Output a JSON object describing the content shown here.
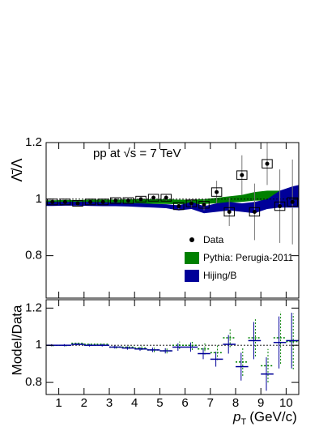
{
  "chart_data": [
    {
      "type": "errorbar",
      "annotation": "pp at √s = 7 TeV",
      "annotation_color": "#8b0000",
      "ylabel": "Λ̄/Λ",
      "xlim": [
        0.5,
        10.5
      ],
      "ylim": [
        0.65,
        1.2
      ],
      "xticks": [
        1,
        2,
        3,
        4,
        5,
        6,
        7,
        8,
        9,
        10
      ],
      "yticks": [
        0.8,
        1,
        1.2
      ],
      "reference_line": 1,
      "x": [
        0.75,
        1.25,
        1.75,
        2.25,
        2.75,
        3.25,
        3.75,
        4.25,
        4.75,
        5.25,
        5.75,
        6.25,
        6.75,
        7.25,
        7.75,
        8.25,
        8.75,
        9.25,
        9.75,
        10.25
      ],
      "series": [
        {
          "name": "Data",
          "color": "#000000",
          "values": [
            0.99,
            0.99,
            0.985,
            0.99,
            0.99,
            0.995,
            0.995,
            1.0,
            1.005,
            1.005,
            0.975,
            0.985,
            0.98,
            1.025,
            0.955,
            1.085,
            0.955,
            1.125,
            0.975,
            0.99
          ],
          "errors": [
            0.004,
            0.004,
            0.004,
            0.005,
            0.005,
            0.005,
            0.006,
            0.007,
            0.008,
            0.01,
            0.012,
            0.015,
            0.02,
            0.04,
            0.05,
            0.07,
            0.1,
            0.075,
            0.13,
            0.15
          ],
          "syst": [
            0.01,
            0.01,
            0.01,
            0.01,
            0.01,
            0.01,
            0.01,
            0.01,
            0.012,
            0.012,
            0.012,
            0.012,
            0.012,
            0.015,
            0.015,
            0.015,
            0.015,
            0.015,
            0.015,
            0.015
          ]
        }
      ],
      "bands": [
        {
          "name": "Pythia: Perugia-2011",
          "color": "#008000",
          "x": [
            0.5,
            0.75,
            1.25,
            1.75,
            2.25,
            2.75,
            3.25,
            3.75,
            4.25,
            4.75,
            5.25,
            5.75,
            6.25,
            6.75,
            7.25,
            7.75,
            8.25,
            8.75,
            9.25,
            9.75,
            10.25,
            10.5
          ],
          "lower": [
            0.978,
            0.978,
            0.979,
            0.979,
            0.98,
            0.98,
            0.981,
            0.982,
            0.983,
            0.983,
            0.983,
            0.982,
            0.982,
            0.983,
            0.985,
            0.988,
            0.99,
            0.995,
            0.995,
            0.99,
            0.985,
            0.985
          ],
          "upper": [
            0.996,
            0.996,
            0.997,
            0.997,
            0.998,
            0.998,
            0.998,
            0.999,
            1.0,
            1.0,
            1.0,
            0.998,
            0.998,
            1.0,
            1.005,
            1.01,
            1.015,
            1.025,
            1.03,
            1.03,
            1.025,
            1.025
          ]
        },
        {
          "name": "Hijing/B",
          "color": "#000099",
          "x": [
            0.5,
            0.75,
            1.25,
            1.75,
            2.25,
            2.75,
            3.25,
            3.75,
            4.25,
            4.75,
            5.25,
            5.75,
            6.25,
            6.75,
            7.25,
            7.75,
            8.25,
            8.75,
            9.25,
            9.75,
            10.25,
            10.5
          ],
          "lower": [
            0.976,
            0.976,
            0.977,
            0.977,
            0.976,
            0.975,
            0.975,
            0.974,
            0.972,
            0.97,
            0.968,
            0.96,
            0.965,
            0.95,
            0.955,
            0.96,
            0.955,
            0.95,
            0.965,
            0.97,
            0.97,
            0.97
          ],
          "upper": [
            0.99,
            0.99,
            0.99,
            0.991,
            0.99,
            0.989,
            0.988,
            0.987,
            0.985,
            0.983,
            0.982,
            0.978,
            0.99,
            0.975,
            0.985,
            0.99,
            0.985,
            0.99,
            1.0,
            1.03,
            1.045,
            1.05
          ]
        }
      ]
    },
    {
      "type": "errorbar",
      "ylabel": "Model/Data",
      "xlabel": {
        "symbol": "p",
        "subscript": "T",
        "unit": "(GeV/c)"
      },
      "xlim": [
        0.5,
        10.5
      ],
      "ylim": [
        0.735,
        1.245
      ],
      "xticks": [
        1,
        2,
        3,
        4,
        5,
        6,
        7,
        8,
        9,
        10
      ],
      "yticks": [
        0.8,
        1,
        1.2
      ],
      "reference_line": 1,
      "x": [
        0.75,
        1.25,
        1.75,
        2.25,
        2.75,
        3.25,
        3.75,
        4.25,
        4.75,
        5.25,
        5.75,
        6.25,
        6.75,
        7.25,
        7.75,
        8.25,
        8.75,
        9.25,
        9.75,
        10.25
      ],
      "series": [
        {
          "name": "Pythia: Perugia-2011",
          "color": "#008000",
          "values": [
            1.0,
            1.0,
            1.01,
            1.005,
            1.005,
            0.99,
            0.99,
            0.985,
            0.975,
            0.97,
            1.0,
            1.0,
            0.98,
            0.96,
            1.04,
            0.91,
            1.04,
            0.89,
            1.04,
            1.02
          ],
          "errors": [
            0.006,
            0.006,
            0.006,
            0.007,
            0.007,
            0.008,
            0.009,
            0.01,
            0.012,
            0.014,
            0.02,
            0.025,
            0.03,
            0.04,
            0.05,
            0.075,
            0.1,
            0.09,
            0.14,
            0.15
          ]
        },
        {
          "name": "Hijing/B",
          "color": "#000099",
          "values": [
            1.0,
            1.0,
            1.005,
            1.0,
            1.0,
            0.99,
            0.985,
            0.98,
            0.975,
            0.97,
            0.99,
            0.99,
            0.955,
            0.925,
            1.005,
            0.885,
            1.025,
            0.845,
            1.015,
            1.025
          ],
          "errors": [
            0.006,
            0.006,
            0.006,
            0.007,
            0.007,
            0.008,
            0.009,
            0.01,
            0.012,
            0.014,
            0.02,
            0.025,
            0.03,
            0.04,
            0.05,
            0.075,
            0.1,
            0.09,
            0.14,
            0.15
          ]
        }
      ]
    }
  ]
}
